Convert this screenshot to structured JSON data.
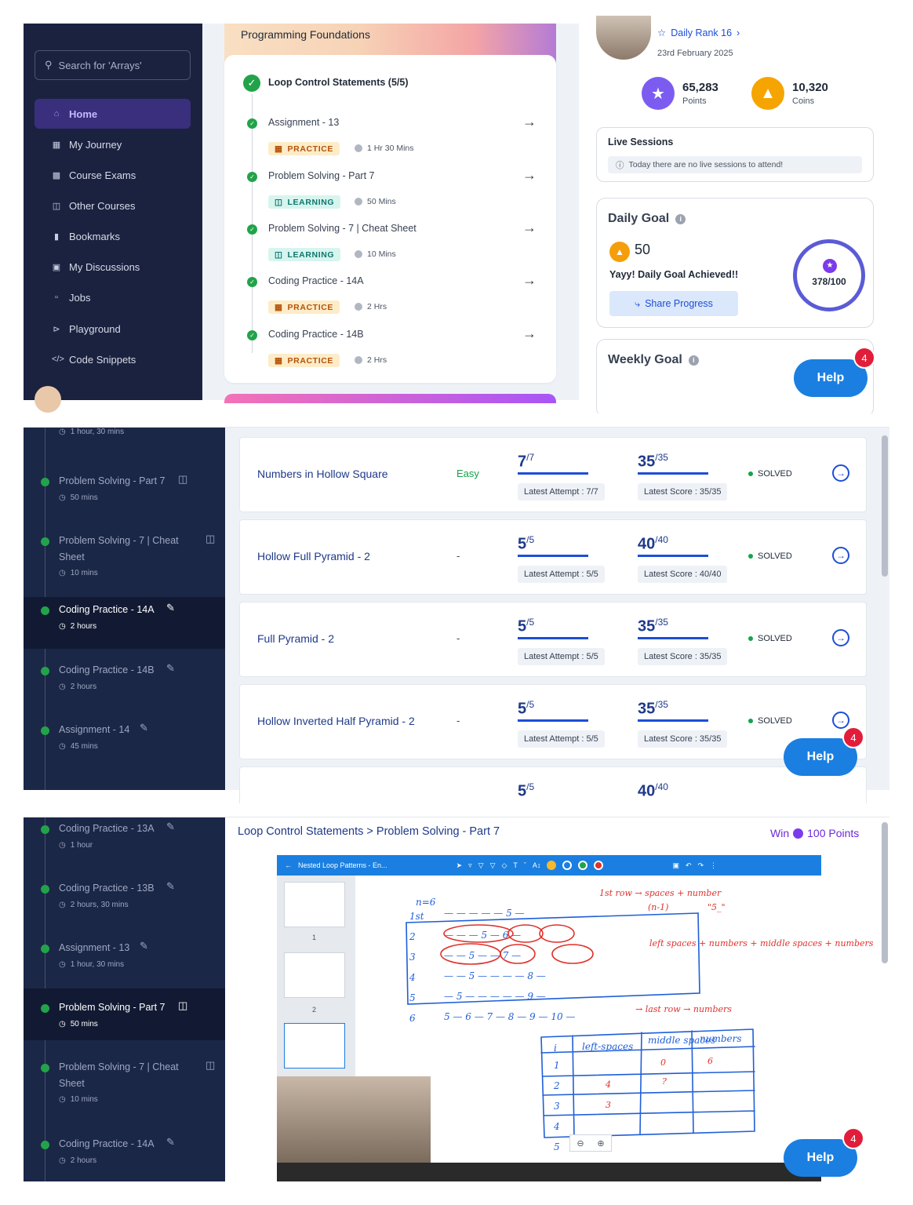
{
  "panel1": {
    "search_placeholder": "Search for 'Arrays'",
    "nav": [
      {
        "label": "Home",
        "icon": "home-icon"
      },
      {
        "label": "My Journey",
        "icon": "journey-icon"
      },
      {
        "label": "Course Exams",
        "icon": "exam-icon"
      },
      {
        "label": "Other Courses",
        "icon": "courses-icon"
      },
      {
        "label": "Bookmarks",
        "icon": "bookmark-icon"
      },
      {
        "label": "My Discussions",
        "icon": "discussion-icon"
      },
      {
        "label": "Jobs",
        "icon": "jobs-icon"
      },
      {
        "label": "Playground",
        "icon": "playground-icon"
      },
      {
        "label": "Code Snippets",
        "icon": "code-icon"
      }
    ],
    "course_title": "Programming Foundations",
    "module_title": "Loop Control Statements (5/5)",
    "items": [
      {
        "name": "Assignment - 13",
        "tag": "PRACTICE",
        "duration": "1 Hr 30 Mins"
      },
      {
        "name": "Problem Solving - Part 7",
        "tag": "LEARNING",
        "duration": "50 Mins"
      },
      {
        "name": "Problem Solving - 7 | Cheat Sheet",
        "tag": "LEARNING",
        "duration": "10 Mins"
      },
      {
        "name": "Coding Practice - 14A",
        "tag": "PRACTICE",
        "duration": "2 Hrs"
      },
      {
        "name": "Coding Practice - 14B",
        "tag": "PRACTICE",
        "duration": "2 Hrs"
      }
    ],
    "rank": "Daily Rank 16",
    "date": "23rd February 2025",
    "points_value": "65,283",
    "points_label": "Points",
    "coins_value": "10,320",
    "coins_label": "Coins",
    "live_title": "Live Sessions",
    "live_msg": "Today there are no live sessions to attend!",
    "daily_goal_title": "Daily Goal",
    "daily_goal_value": "50",
    "daily_goal_msg": "Yayy! Daily Goal Achieved!!",
    "share_label": "Share Progress",
    "ring_value": "378/100",
    "weekly_goal_title": "Weekly Goal",
    "help_label": "Help",
    "help_badge": "4"
  },
  "panel2": {
    "sidebar": [
      {
        "name": "",
        "meta": "1 hour, 30 mins"
      },
      {
        "name": "Problem Solving - Part 7",
        "meta": "50 mins"
      },
      {
        "name": "Problem Solving - 7 | Cheat Sheet",
        "meta": "10 mins"
      },
      {
        "name": "Coding Practice - 14A",
        "meta": "2 hours"
      },
      {
        "name": "Coding Practice - 14B",
        "meta": "2 hours"
      },
      {
        "name": "Assignment - 14",
        "meta": "45 mins"
      }
    ],
    "problems": [
      {
        "name": "Numbers in Hollow Square",
        "difficulty": "Easy",
        "attempt": "7",
        "attempt_total": "/7",
        "attempt_label": "Latest Attempt : 7/7",
        "score": "35",
        "score_total": "/35",
        "score_label": "Latest Score : 35/35",
        "status": "SOLVED"
      },
      {
        "name": "Hollow Full Pyramid - 2",
        "difficulty": "-",
        "attempt": "5",
        "attempt_total": "/5",
        "attempt_label": "Latest Attempt : 5/5",
        "score": "40",
        "score_total": "/40",
        "score_label": "Latest Score : 40/40",
        "status": "SOLVED"
      },
      {
        "name": "Full Pyramid - 2",
        "difficulty": "-",
        "attempt": "5",
        "attempt_total": "/5",
        "attempt_label": "Latest Attempt : 5/5",
        "score": "35",
        "score_total": "/35",
        "score_label": "Latest Score : 35/35",
        "status": "SOLVED"
      },
      {
        "name": "Hollow Inverted Half Pyramid - 2",
        "difficulty": "-",
        "attempt": "5",
        "attempt_total": "/5",
        "attempt_label": "Latest Attempt : 5/5",
        "score": "35",
        "score_total": "/35",
        "score_label": "Latest Score : 35/35",
        "status": "SOLVED"
      }
    ],
    "partial_attempt": "5",
    "partial_attempt_total": "/5",
    "partial_score": "40",
    "partial_score_total": "/40",
    "help_label": "Help",
    "help_badge": "4"
  },
  "panel3": {
    "sidebar": [
      {
        "name": "Coding Practice - 13A",
        "meta": "1 hour"
      },
      {
        "name": "Coding Practice - 13B",
        "meta": "2 hours, 30 mins"
      },
      {
        "name": "Assignment - 13",
        "meta": "1 hour, 30 mins"
      },
      {
        "name": "Problem Solving - Part 7",
        "meta": "50 mins"
      },
      {
        "name": "Problem Solving - 7 | Cheat Sheet",
        "meta": "10 mins"
      },
      {
        "name": "Coding Practice - 14A",
        "meta": "2 hours"
      }
    ],
    "breadcrumb": "Loop Control Statements > Problem Solving - Part 7",
    "win_prefix": "Win",
    "win_points": "100 Points",
    "video_title": "Nested Loop Patterns - En...",
    "thumb_numbers": [
      "1",
      "2"
    ],
    "board": {
      "n_label": "n=6",
      "row_labels": [
        "1st",
        "2",
        "3",
        "4",
        "5",
        "6"
      ],
      "row_text": [
        "— — — — — 5 —",
        "— — — 5 — 6 —",
        "— — 5 — — 7 —",
        "— — 5 — — — — 8 —",
        "— 5 — — — — — 9 —",
        "5 — 6 — 7 — 8 — 9 — 10 —"
      ],
      "note1": "1st row → spaces + number",
      "note1b": "(n-1)",
      "note1c": "\"5_\"",
      "note2": "left spaces + numbers + middle spaces + numbers",
      "note3": "→ last row → numbers",
      "table_headers": [
        "i",
        "left-spaces",
        "middle spaces",
        "numbers"
      ],
      "table_rows": [
        [
          "1",
          "",
          "0",
          "6"
        ],
        [
          "2",
          "4",
          "?",
          ""
        ],
        [
          "3",
          "3",
          "",
          ""
        ],
        [
          "4",
          "",
          "",
          ""
        ],
        [
          "5",
          "",
          "",
          ""
        ]
      ]
    },
    "help_label": "Help",
    "help_badge": "4"
  }
}
